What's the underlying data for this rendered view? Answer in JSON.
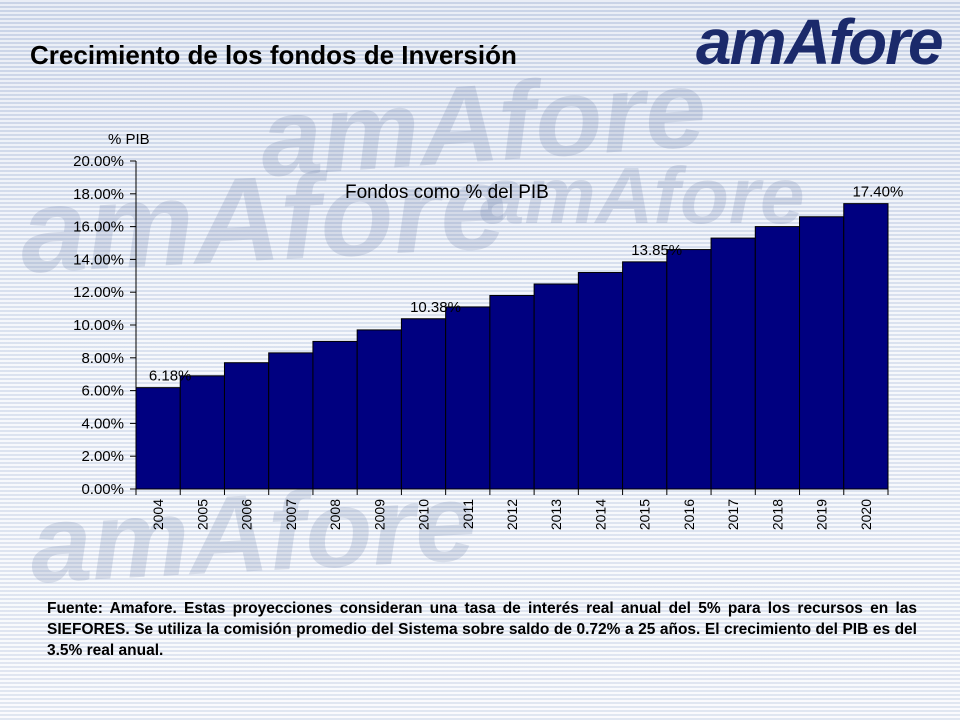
{
  "slide": {
    "title": "Crecimiento de los fondos de Inversión",
    "logo_text": "amAfore",
    "footnote": "Fuente: Amafore. Estas proyecciones consideran una tasa de interés real anual del 5% para los recursos en las SIEFORES. Se utiliza la comisión promedio del Sistema sobre saldo de 0.72% a 25 años. El crecimiento del PIB es del 3.5% real anual."
  },
  "chart_data": {
    "type": "bar",
    "title": "Fondos como % del PIB",
    "ylabel": "% PIB",
    "categories": [
      "2004",
      "2005",
      "2006",
      "2007",
      "2008",
      "2009",
      "2010",
      "2011",
      "2012",
      "2013",
      "2014",
      "2015",
      "2016",
      "2017",
      "2018",
      "2019",
      "2020"
    ],
    "values": [
      6.18,
      6.9,
      7.7,
      8.3,
      9.0,
      9.7,
      10.38,
      11.1,
      11.8,
      12.5,
      13.2,
      13.85,
      14.6,
      15.3,
      16.0,
      16.6,
      17.4
    ],
    "value_labels": [
      {
        "category": "2004",
        "text": "6.18%"
      },
      {
        "category": "2010",
        "text": "10.38%"
      },
      {
        "category": "2015",
        "text": "13.85%"
      },
      {
        "category": "2020",
        "text": "17.40%"
      }
    ],
    "yticks": [
      "0.00%",
      "2.00%",
      "4.00%",
      "6.00%",
      "8.00%",
      "10.00%",
      "12.00%",
      "14.00%",
      "16.00%",
      "18.00%",
      "20.00%"
    ],
    "ylim": [
      0,
      20
    ],
    "grid": false,
    "bar_color": "#000080"
  }
}
